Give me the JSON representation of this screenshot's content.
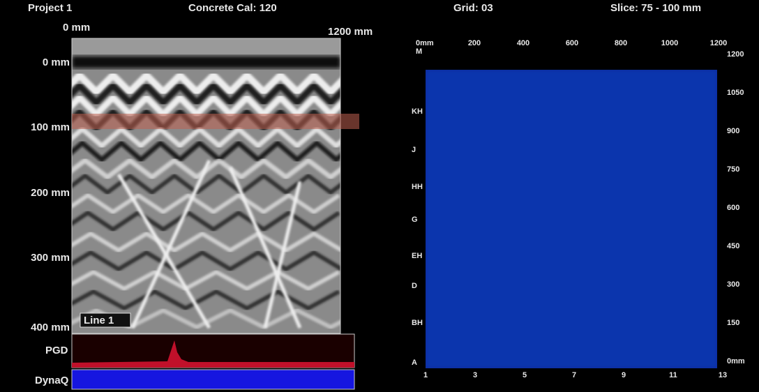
{
  "header": {
    "project": "Project 1",
    "calibration": "Concrete Cal: 120",
    "grid": "Grid: 03",
    "slice": "Slice: 75 - 100 mm"
  },
  "radargram": {
    "x_start": "0 mm",
    "x_end": "1200 mm",
    "depths": [
      "0 mm",
      "100 mm",
      "200 mm",
      "300 mm",
      "400 mm"
    ],
    "line_label": "Line 1",
    "pgd_label": "PGD",
    "dynaq_label": "DynaQ"
  },
  "slice_map": {
    "corner_top": "0mm",
    "corner_unit": "M",
    "top_axis": [
      "200",
      "400",
      "600",
      "800",
      "1000",
      "1200"
    ],
    "left_axis": [
      "KH",
      "J",
      "HH",
      "G",
      "EH",
      "D",
      "BH",
      "A"
    ],
    "bottom_axis": [
      "1",
      "3",
      "5",
      "7",
      "9",
      "11",
      "13"
    ],
    "right_axis": [
      "1200",
      "1050",
      "900",
      "750",
      "600",
      "450",
      "300",
      "150",
      "0mm"
    ]
  }
}
